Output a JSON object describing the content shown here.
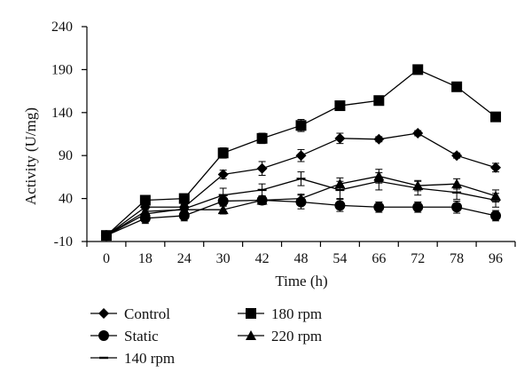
{
  "chart_data": {
    "type": "line",
    "xlabel": "Time (h)",
    "ylabel": "Activity (U/mg)",
    "categories": [
      "0",
      "18",
      "24",
      "30",
      "42",
      "48",
      "54",
      "66",
      "72",
      "78",
      "96"
    ],
    "ylim": [
      -10,
      240
    ],
    "yticks": [
      -10,
      40,
      90,
      140,
      190,
      240
    ],
    "grid": false,
    "legend_position": "bottom",
    "series": [
      {
        "name": "Control",
        "marker": "diamond",
        "values": [
          -3,
          30,
          30,
          68,
          75,
          90,
          110,
          109,
          116,
          90,
          76
        ],
        "errors": [
          3,
          5,
          4,
          5,
          8,
          7,
          6,
          3,
          3,
          3,
          5
        ]
      },
      {
        "name": "180 rpm",
        "marker": "square",
        "values": [
          -3,
          38,
          40,
          93,
          110,
          125,
          148,
          154,
          190,
          170,
          135
        ],
        "errors": [
          3,
          4,
          3,
          6,
          6,
          7,
          5,
          5,
          3,
          3,
          3
        ]
      },
      {
        "name": "Static",
        "marker": "circle",
        "values": [
          -3,
          17,
          20,
          37,
          38,
          36,
          32,
          30,
          30,
          30,
          20
        ],
        "errors": [
          3,
          6,
          6,
          6,
          5,
          8,
          7,
          6,
          6,
          7,
          6
        ]
      },
      {
        "name": "220 rpm",
        "marker": "triangle",
        "values": [
          -3,
          25,
          27,
          27,
          38,
          40,
          57,
          66,
          55,
          57,
          43
        ],
        "errors": [
          3,
          5,
          5,
          5,
          5,
          5,
          7,
          8,
          6,
          6,
          7
        ]
      },
      {
        "name": "140 rpm",
        "marker": "dash",
        "values": [
          -3,
          22,
          28,
          44,
          50,
          63,
          50,
          60,
          52,
          47,
          38
        ],
        "errors": [
          3,
          5,
          5,
          8,
          7,
          8,
          10,
          10,
          8,
          8,
          8
        ]
      }
    ],
    "legend": [
      {
        "label": "Control",
        "marker": "diamond"
      },
      {
        "label": "180 rpm",
        "marker": "square"
      },
      {
        "label": "Static",
        "marker": "circle"
      },
      {
        "label": "220 rpm",
        "marker": "triangle"
      },
      {
        "label": "140 rpm",
        "marker": "dash"
      }
    ]
  }
}
